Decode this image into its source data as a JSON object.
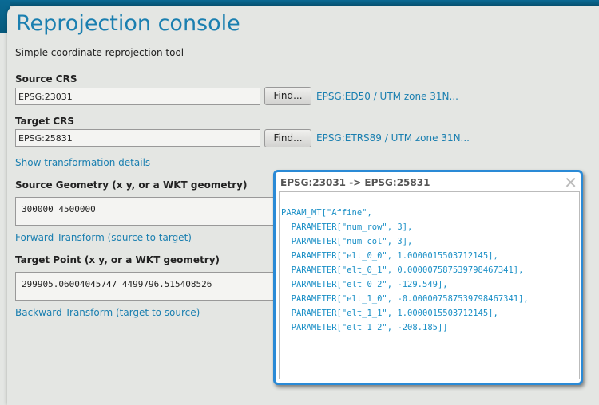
{
  "header": {
    "title": "Reprojection console",
    "subtitle": "Simple coordinate reprojection tool"
  },
  "source_crs": {
    "label": "Source CRS",
    "value": "EPSG:23031",
    "find_label": "Find...",
    "name": "EPSG:ED50 / UTM zone 31N..."
  },
  "target_crs": {
    "label": "Target CRS",
    "value": "EPSG:25831",
    "find_label": "Find...",
    "name": "EPSG:ETRS89 / UTM zone 31N..."
  },
  "show_details": "Show transformation details",
  "source_geometry": {
    "label": "Source Geometry (x y, or a WKT geometry)",
    "value": "300000 4500000"
  },
  "forward_link": "Forward Transform (source to target)",
  "target_point": {
    "label": "Target Point (x y, or a WKT geometry)",
    "value": "299905.06004045747 4499796.515408526"
  },
  "backward_link": "Backward Transform (target to source)",
  "popup": {
    "title": "EPSG:23031 -> EPSG:25831",
    "close_icon": "close-icon",
    "lines": [
      "PARAM_MT[\"Affine\",",
      "  PARAMETER[\"num_row\", 3],",
      "  PARAMETER[\"num_col\", 3],",
      "  PARAMETER[\"elt_0_0\", 1.0000015503712145],",
      "  PARAMETER[\"elt_0_1\", 0.000007587539798467341],",
      "  PARAMETER[\"elt_0_2\", -129.549],",
      "  PARAMETER[\"elt_1_0\", -0.000007587539798467341],",
      "  PARAMETER[\"elt_1_1\", 1.0000015503712145],",
      "  PARAMETER[\"elt_1_2\", -208.185]]"
    ]
  },
  "colors": {
    "accent": "#1a7fb0",
    "popup_border": "#2a8ad6",
    "header_band": "#0a6a94"
  }
}
